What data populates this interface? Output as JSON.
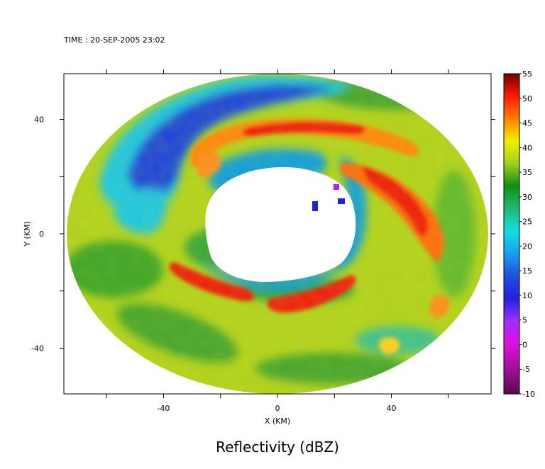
{
  "header": {
    "time_label": "TIME : 20-SEP-2005 23:02"
  },
  "chart_data": {
    "type": "heatmap",
    "title": "Reflectivity (dBZ)",
    "xlabel": "X (KM)",
    "ylabel": "Y (KM)",
    "xlim": [
      -75,
      75
    ],
    "ylim": [
      -56,
      56
    ],
    "x_ticks": [
      -40,
      0,
      40
    ],
    "y_ticks": [
      -40,
      0,
      40
    ],
    "colorbar": {
      "label": "Reflectivity (dBZ)",
      "range": [
        -10,
        55
      ],
      "ticks": [
        -10,
        -5,
        0,
        5,
        10,
        15,
        20,
        25,
        30,
        35,
        40,
        45,
        50,
        55
      ],
      "colors": [
        "#5a0a4a",
        "#a0109a",
        "#e010e0",
        "#9a30ff",
        "#2020e0",
        "#2050e0",
        "#1aa0f0",
        "#10e0e0",
        "#20b870",
        "#109010",
        "#a0d020",
        "#f0f000",
        "#ff8000",
        "#ff1a00",
        "#700000"
      ]
    },
    "features": [
      {
        "name": "radar coverage ellipse",
        "center_km": [
          0,
          0
        ],
        "semi_axes_km": [
          74,
          56
        ]
      },
      {
        "name": "no-data eye",
        "center_km": [
          3,
          5
        ],
        "semi_axes_km": [
          26,
          21
        ]
      },
      {
        "name": "northeast eyewall band",
        "max_dbz": 50
      },
      {
        "name": "southern eyewall band",
        "max_dbz": 48
      },
      {
        "name": "northwest low-reflectivity region",
        "min_dbz": 12
      }
    ]
  }
}
